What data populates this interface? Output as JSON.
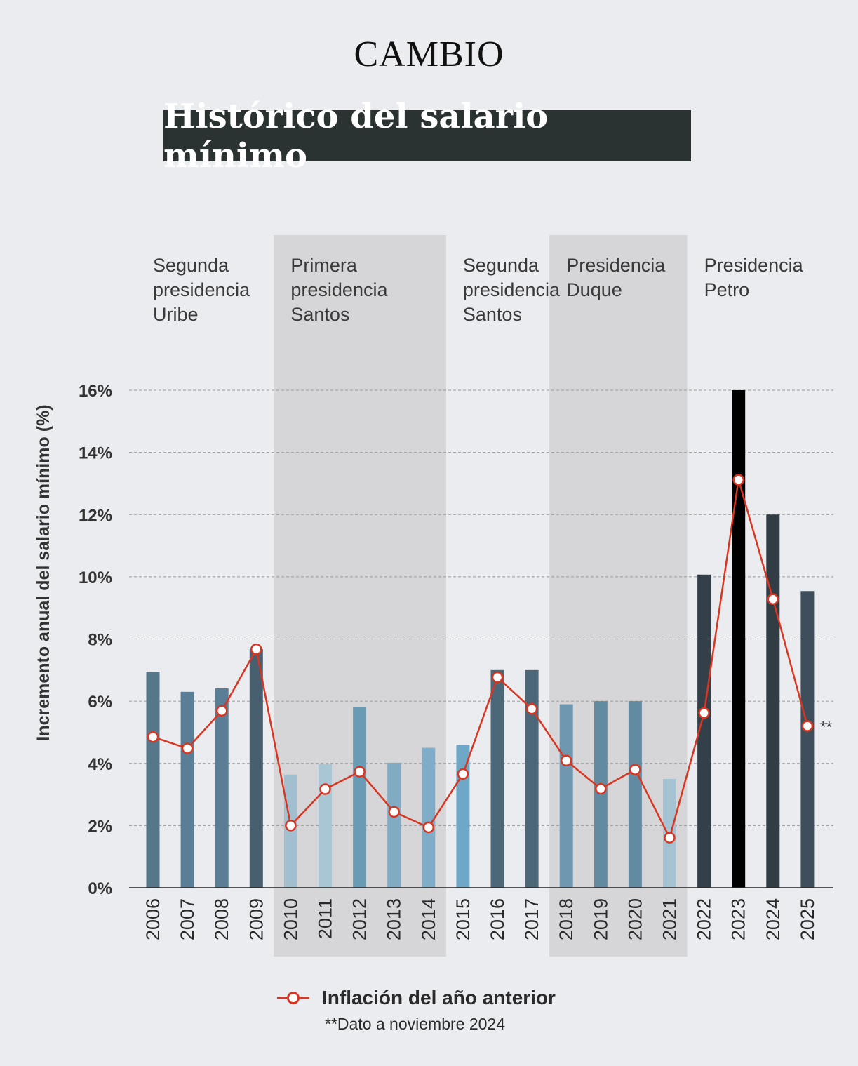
{
  "brand": "CAMBIO",
  "title": "Histórico del salario mínimo",
  "chart_data": {
    "type": "bar",
    "ylabel": "Incremento anual del salario mínimo (%)",
    "xlabel": "",
    "ylim": [
      0,
      16
    ],
    "yticks": [
      0,
      2,
      4,
      6,
      8,
      10,
      12,
      14,
      16
    ],
    "ytick_labels": [
      "0%",
      "2%",
      "4%",
      "6%",
      "8%",
      "10%",
      "12%",
      "14%",
      "16%"
    ],
    "grid": "horizontal dashed",
    "categories": [
      "2006",
      "2007",
      "2008",
      "2009",
      "2010",
      "2011",
      "2012",
      "2013",
      "2014",
      "2015",
      "2016",
      "2017",
      "2018",
      "2019",
      "2020",
      "2021",
      "2022",
      "2023",
      "2024",
      "2025"
    ],
    "series": [
      {
        "name": "",
        "chart": "bar",
        "values": [
          6.95,
          6.3,
          6.41,
          7.67,
          3.64,
          3.98,
          5.8,
          4.02,
          4.5,
          4.6,
          7.0,
          7.0,
          5.9,
          6.0,
          6.0,
          3.5,
          10.07,
          16.0,
          12.0,
          9.54
        ],
        "colors": [
          "#56768a",
          "#5a7e96",
          "#5a7e96",
          "#475f6e",
          "#a2bfcf",
          "#a9c6d5",
          "#6a9bb4",
          "#81abc2",
          "#7fadc7",
          "#6ea8c6",
          "#4b6778",
          "#4b6778",
          "#6f98b0",
          "#628aa0",
          "#628aa0",
          "#a6c3d3",
          "#344049",
          "#000000",
          "#323c45",
          "#3e4e5a"
        ]
      },
      {
        "name": "Inflación del año anterior",
        "chart": "line",
        "color": "#d93520",
        "values": [
          4.85,
          4.48,
          5.69,
          7.67,
          2.0,
          3.17,
          3.73,
          2.44,
          1.94,
          3.66,
          6.77,
          5.75,
          4.09,
          3.18,
          3.8,
          1.61,
          5.62,
          13.12,
          9.28,
          5.2
        ]
      }
    ],
    "periods": [
      {
        "label": [
          "Segunda",
          "presidencia",
          "Uribe"
        ],
        "start": "2006",
        "end": "2009",
        "shaded": false
      },
      {
        "label": [
          "Primera",
          "presidencia",
          "Santos"
        ],
        "start": "2010",
        "end": "2014",
        "shaded": true
      },
      {
        "label": [
          "Segunda",
          "presidencia",
          "Santos"
        ],
        "start": "2015",
        "end": "2017",
        "shaded": false
      },
      {
        "label": [
          "Presidencia",
          "Duque"
        ],
        "start": "2018",
        "end": "2021",
        "shaded": true
      },
      {
        "label": [
          "Presidencia",
          "Petro"
        ],
        "start": "2022",
        "end": "2025",
        "shaded": false
      }
    ],
    "annotations": [
      {
        "year": "2025",
        "text": "**"
      }
    ],
    "legend": {
      "label": "Inflación del año anterior",
      "placement": "bottom-center"
    },
    "note": "**Dato a noviembre 2024"
  }
}
